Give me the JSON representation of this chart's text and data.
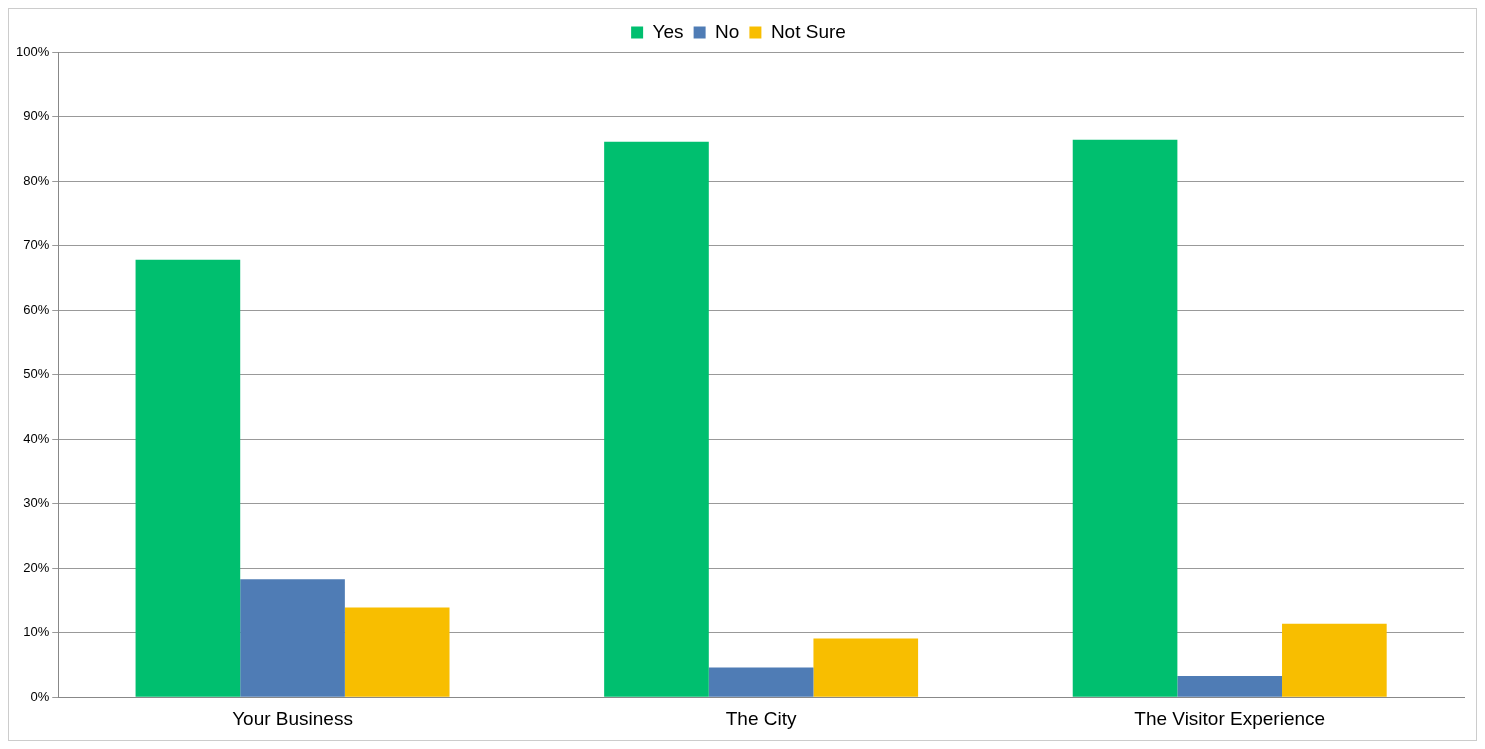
{
  "chart_data": {
    "type": "bar",
    "categories": [
      "Your Business",
      "The City",
      "The Visitor Experience"
    ],
    "series": [
      {
        "name": "Yes",
        "color": "#00bf6f",
        "values": [
          67.8,
          86.1,
          86.4
        ]
      },
      {
        "name": "No",
        "color": "#4f7cb5",
        "values": [
          18.3,
          4.6,
          3.3
        ]
      },
      {
        "name": "Not Sure",
        "color": "#f8be00",
        "values": [
          13.9,
          9.1,
          11.4
        ]
      }
    ],
    "ylim": [
      0,
      100
    ],
    "yticks": [
      {
        "value": 0,
        "label": "0%"
      },
      {
        "value": 10,
        "label": "10%"
      },
      {
        "value": 20,
        "label": "20%"
      },
      {
        "value": 30,
        "label": "30%"
      },
      {
        "value": 40,
        "label": "40%"
      },
      {
        "value": 50,
        "label": "50%"
      },
      {
        "value": 60,
        "label": "60%"
      },
      {
        "value": 70,
        "label": "70%"
      },
      {
        "value": 80,
        "label": "80%"
      },
      {
        "value": 90,
        "label": "90%"
      },
      {
        "value": 100,
        "label": "100%"
      }
    ],
    "grid": "y",
    "legend": "top"
  }
}
